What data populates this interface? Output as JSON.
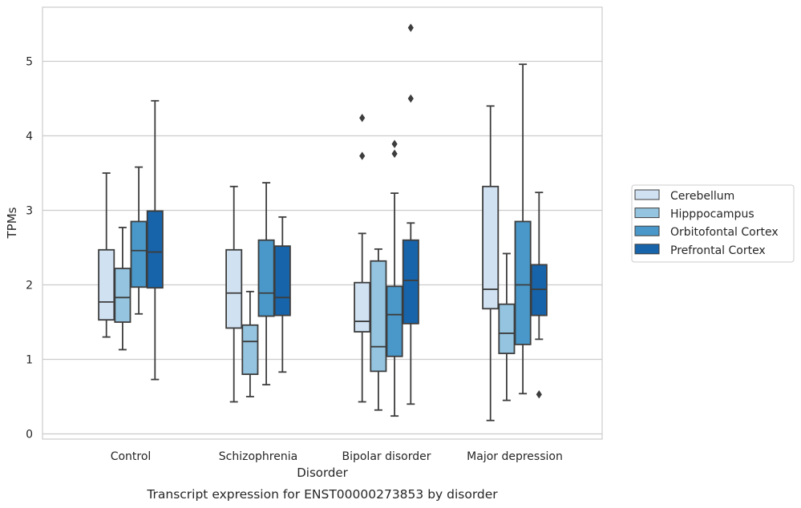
{
  "chart_data": {
    "type": "boxplot",
    "title": "Transcript expression for ENST00000273853 by disorder",
    "xlabel": "Disorder",
    "ylabel": "TPMs",
    "ylim": [
      -0.07,
      5.7
    ],
    "yticks": [
      "0",
      "1",
      "2",
      "3",
      "4",
      "5"
    ],
    "grid": true,
    "legend_position": "right",
    "categories": [
      "Control",
      "Schizophrenia",
      "Bipolar disorder",
      "Major depression"
    ],
    "series": [
      {
        "name": "Cerebellum",
        "color": "#d0e1f2",
        "boxes": [
          {
            "min": 1.3,
            "q1": 1.53,
            "median": 1.77,
            "q3": 2.47,
            "max": 3.5,
            "outliers": []
          },
          {
            "min": 0.43,
            "q1": 1.42,
            "median": 1.89,
            "q3": 2.47,
            "max": 3.32,
            "outliers": []
          },
          {
            "min": 0.43,
            "q1": 1.37,
            "median": 1.51,
            "q3": 2.03,
            "max": 2.69,
            "outliers": [
              3.73,
              4.24
            ]
          },
          {
            "min": 0.18,
            "q1": 1.68,
            "median": 1.94,
            "q3": 3.32,
            "max": 4.4,
            "outliers": []
          }
        ]
      },
      {
        "name": "Hipppocampus",
        "color": "#94c4df",
        "boxes": [
          {
            "min": 1.13,
            "q1": 1.5,
            "median": 1.83,
            "q3": 2.22,
            "max": 2.77,
            "outliers": []
          },
          {
            "min": 0.5,
            "q1": 0.8,
            "median": 1.24,
            "q3": 1.46,
            "max": 1.91,
            "outliers": []
          },
          {
            "min": 0.32,
            "q1": 0.84,
            "median": 1.17,
            "q3": 2.32,
            "max": 2.48,
            "outliers": []
          },
          {
            "min": 0.45,
            "q1": 1.08,
            "median": 1.35,
            "q3": 1.74,
            "max": 2.42,
            "outliers": []
          }
        ]
      },
      {
        "name": "Orbitofontal Cortex",
        "color": "#4a98c9",
        "boxes": [
          {
            "min": 1.61,
            "q1": 1.97,
            "median": 2.46,
            "q3": 2.85,
            "max": 3.58,
            "outliers": []
          },
          {
            "min": 0.66,
            "q1": 1.58,
            "median": 1.89,
            "q3": 2.6,
            "max": 3.37,
            "outliers": []
          },
          {
            "min": 0.24,
            "q1": 1.04,
            "median": 1.6,
            "q3": 1.98,
            "max": 3.23,
            "outliers": [
              3.76,
              3.89
            ]
          },
          {
            "min": 0.54,
            "q1": 1.2,
            "median": 2.0,
            "q3": 2.85,
            "max": 4.96,
            "outliers": []
          }
        ]
      },
      {
        "name": "Prefrontal Cortex",
        "color": "#1764ab",
        "boxes": [
          {
            "min": 0.73,
            "q1": 1.96,
            "median": 2.44,
            "q3": 2.99,
            "max": 4.47,
            "outliers": []
          },
          {
            "min": 0.83,
            "q1": 1.59,
            "median": 1.83,
            "q3": 2.52,
            "max": 2.91,
            "outliers": []
          },
          {
            "min": 0.4,
            "q1": 1.48,
            "median": 2.06,
            "q3": 2.6,
            "max": 2.83,
            "outliers": [
              4.5,
              5.45
            ]
          },
          {
            "min": 1.27,
            "q1": 1.59,
            "median": 1.94,
            "q3": 2.27,
            "max": 3.24,
            "outliers": [
              0.53
            ]
          }
        ]
      }
    ]
  }
}
